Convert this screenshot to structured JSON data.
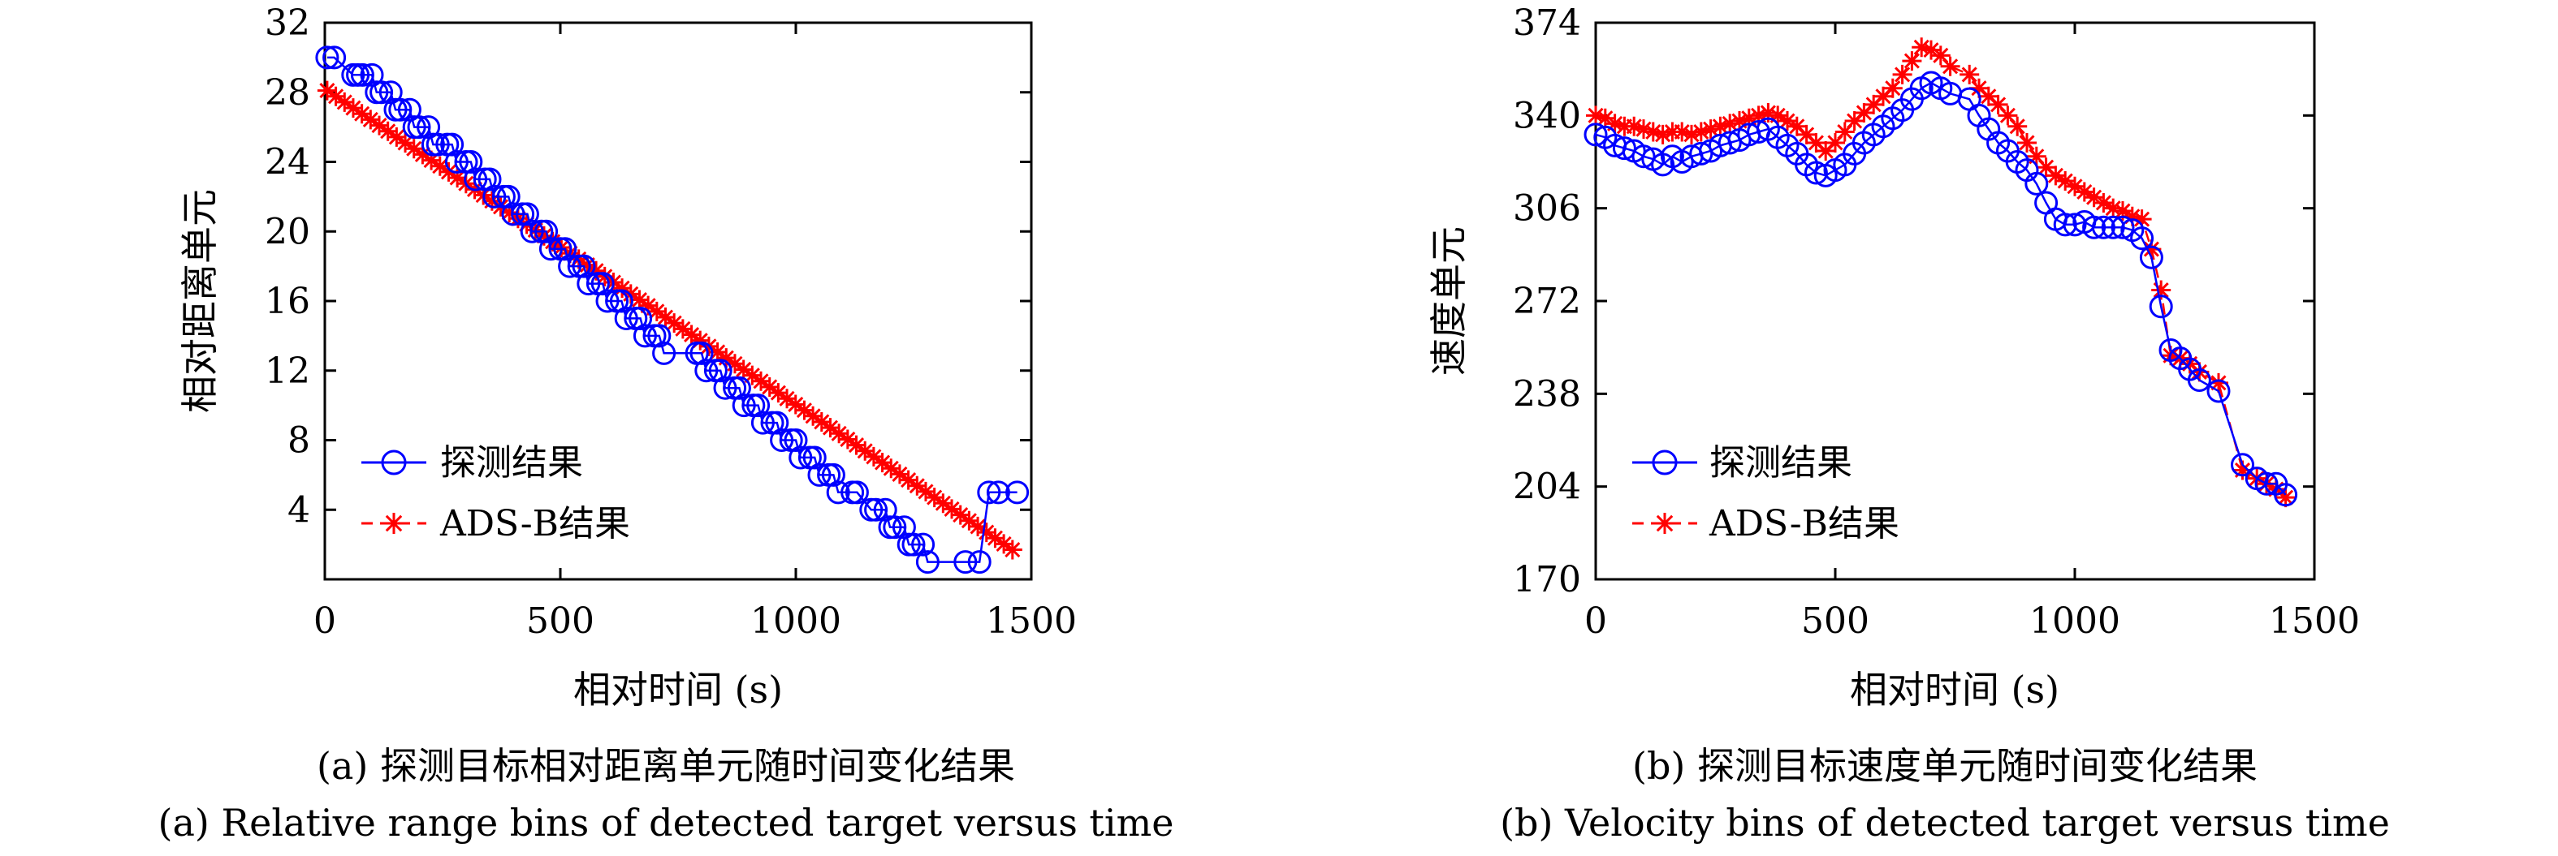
{
  "chart_data": [
    {
      "type": "line",
      "ylabel": "相对距离单元",
      "xlabel": "相对时间 (s)",
      "xlim": [
        0,
        1500
      ],
      "ylim": [
        0,
        32
      ],
      "xticks": [
        0,
        500,
        1000,
        1500
      ],
      "yticks": [
        4,
        8,
        12,
        16,
        20,
        24,
        28,
        32
      ],
      "legend_position": "bottom-left",
      "series": [
        {
          "name": "探测结果",
          "color": "#0000ff",
          "marker": "circle",
          "line": "solid",
          "x": [
            5,
            20,
            60,
            70,
            80,
            100,
            110,
            120,
            140,
            150,
            160,
            180,
            190,
            200,
            220,
            230,
            240,
            260,
            270,
            280,
            300,
            310,
            320,
            340,
            350,
            360,
            380,
            390,
            400,
            420,
            430,
            440,
            460,
            470,
            480,
            500,
            510,
            520,
            540,
            550,
            560,
            580,
            590,
            600,
            620,
            630,
            640,
            660,
            670,
            680,
            700,
            710,
            720,
            790,
            800,
            810,
            830,
            840,
            850,
            870,
            880,
            890,
            910,
            920,
            930,
            950,
            960,
            970,
            990,
            1000,
            1010,
            1030,
            1040,
            1050,
            1070,
            1080,
            1090,
            1120,
            1130,
            1160,
            1170,
            1190,
            1200,
            1210,
            1230,
            1240,
            1250,
            1270,
            1280,
            1360,
            1390,
            1410,
            1430,
            1470
          ],
          "y": [
            30,
            30,
            29,
            29,
            29,
            29,
            28,
            28,
            28,
            27,
            27,
            27,
            26,
            26,
            26,
            25,
            25,
            25,
            25,
            24,
            24,
            24,
            23,
            23,
            23,
            22,
            22,
            22,
            21,
            21,
            21,
            20,
            20,
            20,
            19,
            19,
            19,
            18,
            18,
            18,
            17,
            17,
            17,
            16,
            16,
            16,
            15,
            15,
            15,
            14,
            14,
            14,
            13,
            13,
            13,
            12,
            12,
            12,
            11,
            11,
            11,
            10,
            10,
            10,
            9,
            9,
            9,
            8,
            8,
            8,
            7,
            7,
            7,
            6,
            6,
            6,
            5,
            5,
            5,
            4,
            4,
            4,
            3,
            3,
            3,
            2,
            2,
            2,
            1,
            1,
            1,
            5,
            5,
            5
          ]
        },
        {
          "name": "ADS-B结果",
          "color": "#ff0000",
          "marker": "star",
          "line": "dashed",
          "x": [
            5,
            1460
          ],
          "y": [
            28.1,
            1.7
          ]
        }
      ]
    },
    {
      "type": "line",
      "ylabel": "速度单元",
      "xlabel": "相对时间 (s)",
      "xlim": [
        0,
        1500
      ],
      "ylim": [
        170,
        374
      ],
      "xticks": [
        0,
        500,
        1000,
        1500
      ],
      "yticks": [
        170,
        204,
        238,
        272,
        306,
        340,
        374
      ],
      "legend_position": "bottom-left",
      "series": [
        {
          "name": "探测结果",
          "color": "#0000ff",
          "marker": "circle",
          "line": "solid",
          "x": [
            0,
            20,
            40,
            60,
            80,
            100,
            120,
            140,
            160,
            180,
            200,
            220,
            240,
            260,
            280,
            300,
            320,
            340,
            360,
            380,
            400,
            420,
            440,
            460,
            480,
            500,
            520,
            540,
            560,
            580,
            600,
            620,
            640,
            660,
            680,
            700,
            720,
            740,
            780,
            800,
            820,
            840,
            860,
            880,
            900,
            920,
            940,
            960,
            980,
            1000,
            1020,
            1040,
            1060,
            1080,
            1100,
            1120,
            1140,
            1160,
            1180,
            1200,
            1220,
            1240,
            1260,
            1300,
            1350,
            1380,
            1400,
            1420,
            1440
          ],
          "y": [
            333,
            332,
            329,
            328,
            327,
            325,
            324,
            322,
            325,
            323,
            325,
            326,
            327,
            329,
            330,
            331,
            333,
            334,
            335,
            332,
            329,
            326,
            322,
            319,
            318,
            320,
            322,
            326,
            330,
            333,
            336,
            339,
            342,
            346,
            350,
            352,
            350,
            348,
            346,
            340,
            335,
            330,
            327,
            323,
            320,
            315,
            308,
            302,
            300,
            300,
            301,
            299,
            299,
            299,
            299,
            298,
            295,
            288,
            270,
            254,
            251,
            247,
            243,
            239,
            212,
            207,
            205,
            205,
            201
          ]
        },
        {
          "name": "ADS-B结果",
          "color": "#ff0000",
          "marker": "star",
          "line": "dashed",
          "x": [
            0,
            20,
            40,
            60,
            80,
            100,
            120,
            140,
            160,
            180,
            200,
            220,
            240,
            260,
            280,
            300,
            320,
            340,
            360,
            380,
            400,
            420,
            440,
            460,
            480,
            500,
            520,
            540,
            560,
            580,
            600,
            620,
            640,
            660,
            680,
            700,
            720,
            740,
            780,
            800,
            820,
            840,
            860,
            880,
            900,
            920,
            940,
            960,
            980,
            1000,
            1020,
            1040,
            1060,
            1080,
            1100,
            1120,
            1140,
            1160,
            1180,
            1200,
            1220,
            1240,
            1260,
            1300,
            1350,
            1380,
            1400,
            1420,
            1440
          ],
          "y": [
            340,
            339,
            337,
            336,
            336,
            335,
            334,
            333,
            334,
            334,
            333,
            334,
            335,
            336,
            337,
            338,
            339,
            340,
            341,
            340,
            338,
            336,
            333,
            330,
            327,
            330,
            334,
            338,
            341,
            344,
            347,
            350,
            355,
            360,
            365,
            364,
            362,
            358,
            355,
            350,
            347,
            344,
            340,
            336,
            330,
            325,
            321,
            318,
            316,
            314,
            312,
            310,
            308,
            306,
            305,
            303,
            302,
            291,
            276,
            252,
            251,
            249,
            246,
            242,
            210,
            207,
            205,
            203,
            200
          ]
        }
      ]
    }
  ],
  "captions": {
    "a_cn": "(a) 探测目标相对距离单元随时间变化结果",
    "a_en": "(a) Relative range bins of detected target versus time",
    "b_cn": "(b) 探测目标速度单元随时间变化结果",
    "b_en": "(b) Velocity bins of detected target versus time"
  },
  "legend": {
    "detect_label": "探测结果",
    "adsb_label": "ADS-B结果"
  }
}
